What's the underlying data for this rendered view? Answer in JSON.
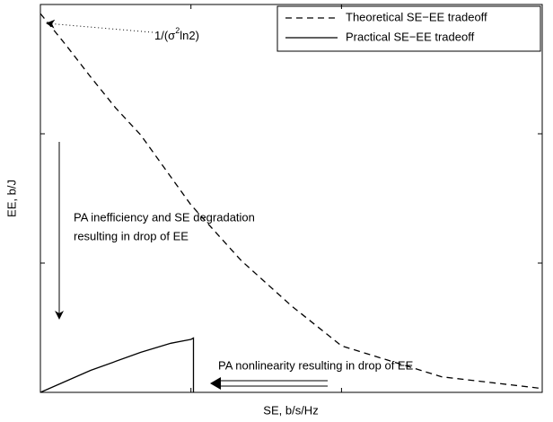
{
  "chart_data": {
    "type": "line",
    "xlabel": "SE, b/s/Hz",
    "ylabel": "EE, b/J",
    "xlim": [
      0,
      10
    ],
    "ylim": [
      0,
      3
    ],
    "xticks": [
      3,
      6
    ],
    "yticks": [
      1,
      2
    ],
    "legend": "upper right",
    "series": [
      {
        "name": "Theoretical SE−EE tradeoff",
        "color": "#000000",
        "dash": "dashed",
        "x": [
          0,
          0.5,
          1,
          1.5,
          2,
          3,
          4,
          5,
          6,
          8,
          10
        ],
        "values": [
          2.93,
          2.69,
          2.44,
          2.2,
          1.99,
          1.45,
          1.02,
          0.67,
          0.36,
          0.12,
          0.03
        ]
      },
      {
        "name": "Practical SE−EE tradeoff",
        "color": "#000000",
        "dash": "solid",
        "x": [
          0,
          1,
          2,
          2.6,
          3,
          3.05,
          3.05
        ],
        "values": [
          0,
          0.17,
          0.31,
          0.38,
          0.41,
          0.42,
          0
        ]
      }
    ],
    "annotations": {
      "peak": [
        "1/(σ",
        "2",
        "ln2)"
      ],
      "inefficiency": [
        "PA inefficiency and SE degradation",
        "resulting in drop of EE"
      ],
      "nonlinearity": "PA nonlinearity resulting in drop of EE"
    }
  }
}
